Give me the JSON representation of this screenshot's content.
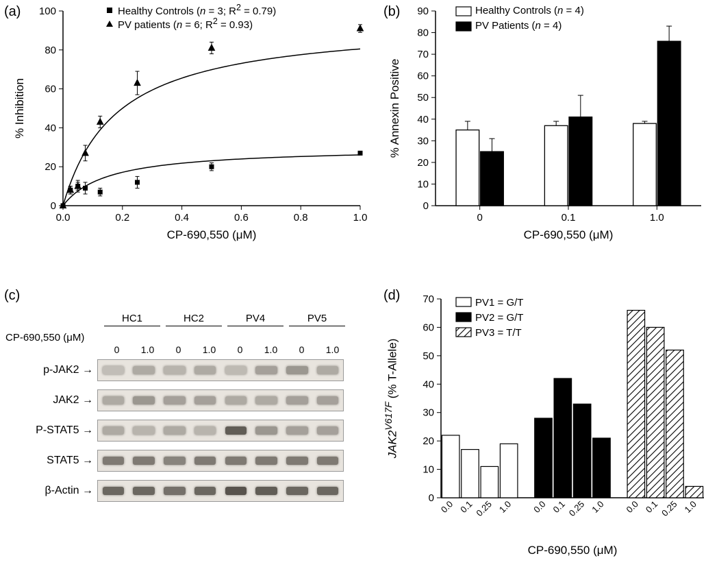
{
  "panelA": {
    "label": "(a)",
    "type": "scatter-line",
    "xlabel": "CP-690,550 (μM)",
    "ylabel": "% Inhibition",
    "xlim": [
      0,
      1.0
    ],
    "ylim": [
      0,
      100
    ],
    "xticks": [
      0.0,
      0.2,
      0.4,
      0.6,
      0.8,
      1.0
    ],
    "yticks": [
      0,
      20,
      40,
      60,
      80,
      100
    ],
    "label_fontsize": 17,
    "tick_fontsize": 15,
    "legend_fontsize": 15,
    "background_color": "#ffffff",
    "axis_color": "#000000",
    "series": [
      {
        "name": "Healthy Controls",
        "legend_html": "Healthy Controls (<i>n</i> = 3; R<sup>2</sup> = 0.79)",
        "marker": "square",
        "marker_color": "#000000",
        "marker_size": 7,
        "x": [
          0.0,
          0.025,
          0.05,
          0.075,
          0.125,
          0.25,
          0.5,
          1.0
        ],
        "y": [
          0,
          8,
          10,
          9,
          7,
          12,
          20,
          27
        ],
        "err": [
          0,
          2,
          3,
          3,
          2,
          3,
          2,
          0
        ],
        "curve_k": 0.15,
        "curve_A": 30
      },
      {
        "name": "PV patients",
        "legend_html": "PV patients (<i>n</i> = 6; R<sup>2</sup> = 0.93)",
        "marker": "triangle",
        "marker_color": "#000000",
        "marker_size": 8,
        "x": [
          0.0,
          0.025,
          0.05,
          0.075,
          0.125,
          0.25,
          0.5,
          1.0
        ],
        "y": [
          0,
          8,
          10,
          27,
          43,
          63,
          81,
          91
        ],
        "err": [
          0,
          2,
          2,
          4,
          3,
          6,
          3,
          2
        ],
        "curve_k": 0.18,
        "curve_A": 95
      }
    ]
  },
  "panelB": {
    "label": "(b)",
    "type": "bar",
    "xlabel": "CP-690,550 (μM)",
    "ylabel": "% Annexin Positive",
    "ylim": [
      0,
      90
    ],
    "yticks": [
      0,
      10,
      20,
      30,
      40,
      50,
      60,
      70,
      80,
      90
    ],
    "categories": [
      "0",
      "0.1",
      "1.0"
    ],
    "label_fontsize": 17,
    "tick_fontsize": 15,
    "legend_fontsize": 15,
    "background_color": "#ffffff",
    "axis_color": "#000000",
    "bar_border": "#000000",
    "series": [
      {
        "name": "Healthy Controls",
        "legend_html": "Healthy Controls (<i>n</i> = 4)",
        "fill": "#ffffff",
        "values": [
          35,
          37,
          38
        ],
        "err": [
          4,
          2,
          1
        ]
      },
      {
        "name": "PV Patients",
        "legend_html": "PV Patients (<i>n</i> = 4)",
        "fill": "#000000",
        "values": [
          25,
          41,
          76
        ],
        "err": [
          6,
          10,
          7
        ]
      }
    ]
  },
  "panelC": {
    "label": "(c)",
    "type": "western-blot",
    "conc_label": "CP-690,550 (μM)",
    "samples": [
      "HC1",
      "HC2",
      "PV4",
      "PV5"
    ],
    "conc_per_sample": [
      "0",
      "1.0"
    ],
    "rows": [
      {
        "label": "p-JAK2",
        "intensities": [
          0.2,
          0.3,
          0.25,
          0.3,
          0.22,
          0.35,
          0.4,
          0.3
        ]
      },
      {
        "label": "JAK2",
        "intensities": [
          0.3,
          0.4,
          0.35,
          0.35,
          0.3,
          0.3,
          0.35,
          0.35
        ]
      },
      {
        "label": "P-STAT5",
        "intensities": [
          0.3,
          0.25,
          0.3,
          0.25,
          0.7,
          0.4,
          0.35,
          0.35
        ]
      },
      {
        "label": "STAT5",
        "intensities": [
          0.55,
          0.55,
          0.5,
          0.55,
          0.55,
          0.55,
          0.55,
          0.55
        ]
      },
      {
        "label": "β-Actin",
        "intensities": [
          0.65,
          0.65,
          0.6,
          0.65,
          0.75,
          0.7,
          0.65,
          0.65
        ]
      }
    ],
    "band_base_color": "#3a352e",
    "strip_bg": "#e8e4de"
  },
  "panelD": {
    "label": "(d)",
    "type": "bar",
    "xlabel": "CP-690,550 (μM)",
    "ylabel_html": "<i>JAK2</i><sup><i>V617F</i></sup> (% T-Allele)",
    "ylim": [
      0,
      70
    ],
    "yticks": [
      0,
      10,
      20,
      30,
      40,
      50,
      60,
      70
    ],
    "groups": [
      "PV1",
      "PV2",
      "PV3"
    ],
    "x_per_group": [
      "0.0",
      "0.1",
      "0.25",
      "1.0"
    ],
    "label_fontsize": 17,
    "tick_fontsize": 13,
    "legend_fontsize": 15,
    "background_color": "#ffffff",
    "axis_color": "#000000",
    "bar_border": "#000000",
    "series": [
      {
        "name": "PV1 = G/T",
        "fill": "#ffffff",
        "pattern": "none",
        "values": [
          22,
          17,
          11,
          19
        ]
      },
      {
        "name": "PV2 = G/T",
        "fill": "#000000",
        "pattern": "none",
        "values": [
          28,
          42,
          33,
          21
        ]
      },
      {
        "name": "PV3 = T/T",
        "fill": "#ffffff",
        "pattern": "hatch",
        "values": [
          66,
          60,
          52,
          4
        ]
      }
    ]
  }
}
